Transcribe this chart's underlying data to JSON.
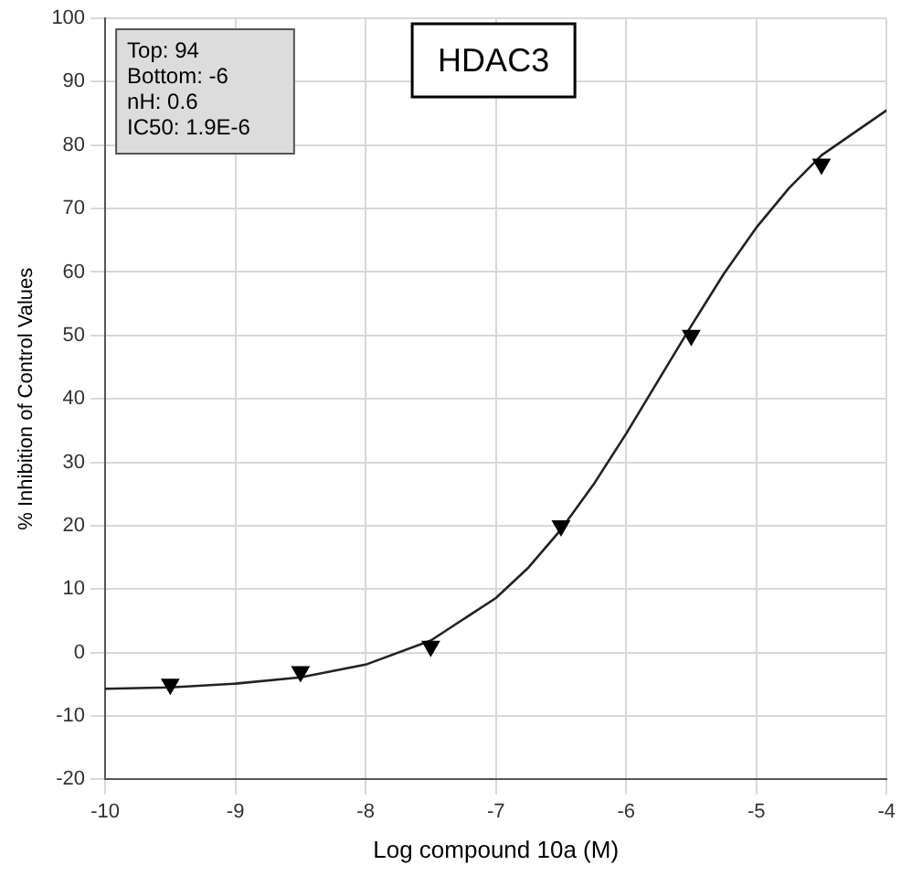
{
  "chart_data": {
    "type": "scatter",
    "title": "HDAC3",
    "xlabel": "Log compound 10a (M)",
    "ylabel": "% Inhibition of Control Values",
    "annotations": [
      "Top: 94",
      "Bottom: -6",
      "nH: 0.6",
      "IC50: 1.9E-6"
    ],
    "series": [
      {
        "color": "#000000",
        "marker": "triangle",
        "x": [
          -9.5,
          -8.5,
          -7.5,
          -6.5,
          -5.5,
          -4.5
        ],
        "values": [
          -5,
          -3,
          1,
          20,
          50,
          77
        ]
      },
      {
        "type": "line",
        "color": "#222222",
        "marker": "none",
        "x": [
          -10,
          -9.5,
          -9,
          -8.5,
          -8,
          -7.5,
          -7,
          -6.75,
          -6.5,
          -6.25,
          -6,
          -5.75,
          -5.5,
          -5.25,
          -5,
          -4.75,
          -4.5,
          -4
        ],
        "values": [
          -5.7,
          -5.5,
          -4.9,
          -3.9,
          -1.9,
          1.9,
          8.6,
          13.4,
          19.4,
          26.5,
          34.5,
          43,
          51.5,
          59.7,
          67,
          73.2,
          78.4,
          85.5
        ]
      }
    ],
    "xlim": [
      -10,
      -4
    ],
    "xticks": [
      -10,
      -9,
      -8,
      -7,
      -6,
      -5,
      -4
    ],
    "ylim": [
      -20,
      100
    ],
    "yticks": [
      -20,
      -10,
      0,
      10,
      20,
      30,
      40,
      50,
      60,
      70,
      80,
      90,
      100
    ],
    "grid": true,
    "legend": false,
    "line_style": "solid"
  }
}
